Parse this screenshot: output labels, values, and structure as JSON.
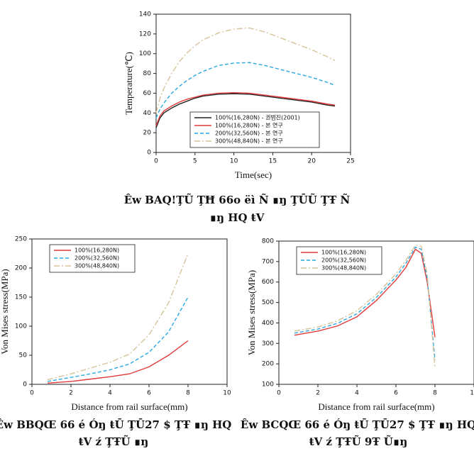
{
  "chart_data": [
    {
      "type": "line",
      "xlabel": "Time(sec)",
      "ylabel": "Temperature(℃)",
      "x": [
        0,
        0.5,
        1,
        2,
        3,
        4,
        5,
        6,
        8,
        10,
        12,
        14,
        16,
        18,
        20,
        22,
        23
      ],
      "xlim": [
        0,
        25
      ],
      "xticks": [
        0,
        5,
        10,
        15,
        20,
        25
      ],
      "ylim": [
        0,
        140
      ],
      "yticks": [
        0,
        20,
        40,
        60,
        80,
        100,
        120,
        140
      ],
      "legend": "lower right",
      "series": [
        {
          "name": "100%(16,280N) - 권범진(2001)",
          "color": "#222222",
          "style": "solid",
          "values": [
            25,
            35,
            40,
            45,
            49,
            52,
            55,
            57,
            59,
            59.5,
            59,
            57,
            55,
            53,
            51,
            48,
            47
          ]
        },
        {
          "name": "100%(16,280N) - 본 연구",
          "color": "#e03a3a",
          "style": "solid",
          "values": [
            27,
            37,
            42,
            47,
            51,
            54,
            56,
            58,
            60,
            60.5,
            60,
            58,
            56,
            54,
            52,
            49,
            48
          ]
        },
        {
          "name": "200%(32,560N) - 본 연구",
          "color": "#2aa8e0",
          "style": "dashed",
          "values": [
            35,
            44,
            50,
            60,
            67,
            73,
            78,
            82,
            88,
            90.5,
            91,
            88,
            84,
            80,
            76,
            71,
            68
          ]
        },
        {
          "name": "300%(48,840N) - 본 연구",
          "color": "#d6c39a",
          "style": "dashdot",
          "values": [
            40,
            55,
            65,
            80,
            92,
            101,
            108,
            114,
            121,
            125,
            126,
            122,
            116,
            110,
            104,
            97,
            93
          ]
        }
      ]
    },
    {
      "type": "line",
      "xlabel": "Distance from rail surface(mm)",
      "ylabel": "Von Mises stress(MPa)",
      "x": [
        0.8,
        2,
        3,
        4,
        5,
        6,
        7,
        8
      ],
      "xlim": [
        0,
        10
      ],
      "xticks": [
        0,
        2,
        4,
        6,
        8,
        10
      ],
      "ylim": [
        0,
        250
      ],
      "yticks": [
        0,
        50,
        100,
        150,
        200,
        250
      ],
      "legend": "upper left",
      "series": [
        {
          "name": "100%(16,280N)",
          "color": "#e03a3a",
          "style": "solid",
          "values": [
            2,
            5,
            9,
            13,
            18,
            30,
            50,
            75
          ]
        },
        {
          "name": "200%(32,560N)",
          "color": "#2aa8e0",
          "style": "dashed",
          "values": [
            5,
            12,
            18,
            25,
            35,
            55,
            90,
            150
          ]
        },
        {
          "name": "300%(48,840N)",
          "color": "#d6c39a",
          "style": "dashdot",
          "values": [
            8,
            18,
            28,
            38,
            52,
            85,
            140,
            225
          ]
        }
      ]
    },
    {
      "type": "line",
      "xlabel": "Distance from rail surface(mm)",
      "ylabel": "Von Mises stress(MPa)",
      "x": [
        0.8,
        2,
        3,
        4,
        5,
        6,
        6.5,
        7,
        7.3,
        7.6,
        8
      ],
      "xlim": [
        0,
        10
      ],
      "xticks": [
        0,
        2,
        4,
        6,
        8,
        10
      ],
      "ylim": [
        100,
        800
      ],
      "yticks": [
        100,
        200,
        300,
        400,
        500,
        600,
        700,
        800
      ],
      "legend": "upper left",
      "series": [
        {
          "name": "100%(16,280N)",
          "color": "#e03a3a",
          "style": "solid",
          "values": [
            340,
            360,
            385,
            430,
            510,
            610,
            670,
            760,
            740,
            600,
            330
          ]
        },
        {
          "name": "200%(32,560N)",
          "color": "#2aa8e0",
          "style": "dashed",
          "values": [
            350,
            370,
            398,
            445,
            525,
            625,
            690,
            770,
            760,
            620,
            220
          ]
        },
        {
          "name": "300%(48,840N)",
          "color": "#d6c39a",
          "style": "dashdot",
          "values": [
            360,
            380,
            410,
            460,
            540,
            640,
            705,
            780,
            775,
            640,
            180
          ]
        }
      ]
    }
  ],
  "captions": [
    [
      "Êw BAQ!ŢŨ ŢĦ 66o ëì Ñ ∎ŋ ŢŪŨ ŢŦ Ñ",
      "∎ŋ HQ ŧV"
    ],
    [
      "Êw BBQŒ 66 é Óŋ ŧŪ ŢŪ27 $ ŢŦ ∎ŋ HQ",
      "ŧV ź ŢŦŨ ∎ŋ"
    ],
    [
      "Êw BCQŒ 66 é Óŋ ŧŪ ŢŪ27 $ ŢŦ ∎ŋ HQ",
      "ŧV ź ŢŦŨ 9Ŧ Ũ∎ŋ"
    ]
  ]
}
